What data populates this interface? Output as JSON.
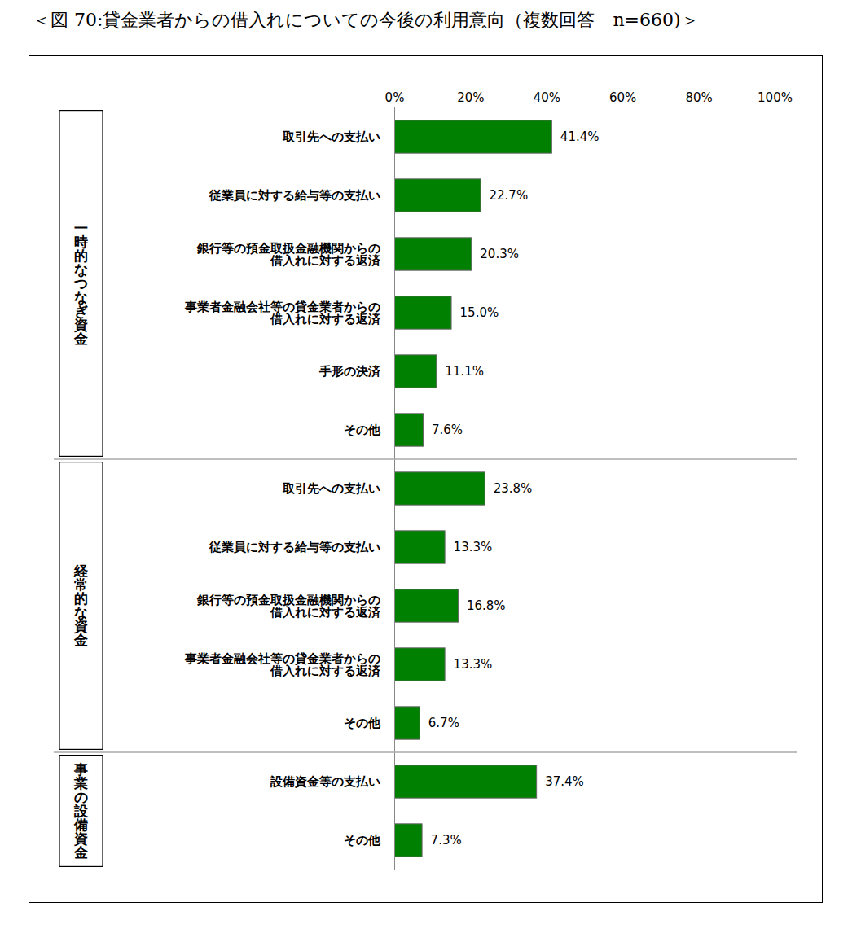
{
  "chart_data": {
    "type": "bar",
    "title": "＜図 70:貸金業者からの借入れについての今後の利用意向（複数回答　n=660)＞",
    "orientation": "horizontal",
    "data_labels": true,
    "color": "#008000",
    "grid": false,
    "xlim": [
      0,
      100
    ],
    "xticks": [
      {
        "value": 0,
        "label": "0%"
      },
      {
        "value": 20,
        "label": "20%"
      },
      {
        "value": 40,
        "label": "40%"
      },
      {
        "value": 60,
        "label": "60%"
      },
      {
        "value": 80,
        "label": "80%"
      },
      {
        "value": 100,
        "label": "100%"
      }
    ],
    "groups": [
      {
        "name": "一時的なつなぎ資金",
        "categories": [
          "取引先への支払い",
          "従業員に対する給与等の支払い",
          "銀行等の預金取扱金融機関からの\n借入れに対する返済",
          "事業者金融会社等の貸金業者からの\n借入れに対する返済",
          "手形の決済",
          "その他"
        ],
        "values": [
          41.4,
          22.7,
          20.3,
          15.0,
          11.1,
          7.6
        ],
        "value_labels": [
          "41.4%",
          "22.7%",
          "20.3%",
          "15.0%",
          "11.1%",
          "7.6%"
        ]
      },
      {
        "name": "経常的な資金",
        "categories": [
          "取引先への支払い",
          "従業員に対する給与等の支払い",
          "銀行等の預金取扱金融機関からの\n借入れに対する返済",
          "事業者金融会社等の貸金業者からの\n借入れに対する返済",
          "その他"
        ],
        "values": [
          23.8,
          13.3,
          16.8,
          13.3,
          6.7
        ],
        "value_labels": [
          "23.8%",
          "13.3%",
          "16.8%",
          "13.3%",
          "6.7%"
        ]
      },
      {
        "name": "事業の設備資金",
        "categories": [
          "設備資金等の支払い",
          "その他"
        ],
        "values": [
          37.4,
          7.3
        ],
        "value_labels": [
          "37.4%",
          "7.3%"
        ]
      }
    ]
  }
}
